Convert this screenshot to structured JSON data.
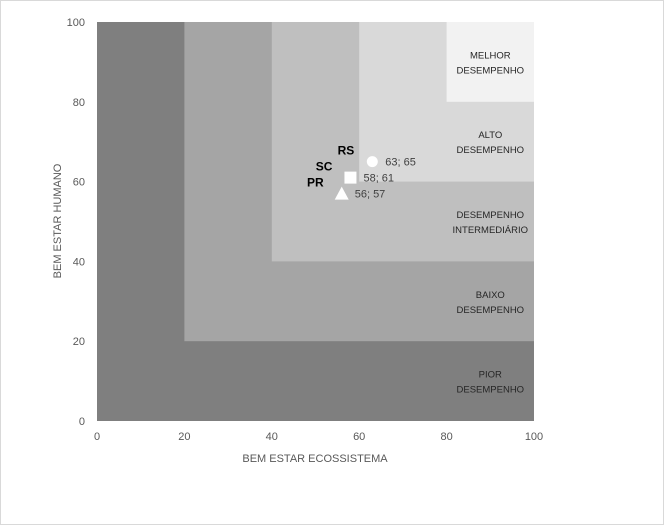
{
  "chart_data": {
    "type": "scatter",
    "title": "",
    "xlabel": "BEM ESTAR ECOSSISTEMA",
    "ylabel": "BEM ESTAR HUMANO",
    "xlim": [
      0,
      100
    ],
    "ylim": [
      0,
      100
    ],
    "xticks": [
      "0",
      "20",
      "40",
      "60",
      "80",
      "100"
    ],
    "yticks": [
      "0",
      "20",
      "40",
      "60",
      "80",
      "100"
    ],
    "grid": false,
    "legend": "none",
    "zones": [
      {
        "lines": [
          "PIOR",
          "DESEMPENHO"
        ],
        "min": 0,
        "color": "#7f7f7f"
      },
      {
        "lines": [
          "BAIXO",
          "DESEMPENHO"
        ],
        "min": 20,
        "color": "#a5a5a5"
      },
      {
        "lines": [
          "DESEMPENHO",
          "INTERMEDIÁRIO"
        ],
        "min": 40,
        "color": "#bfbfbf"
      },
      {
        "lines": [
          "ALTO",
          "DESEMPENHO"
        ],
        "min": 60,
        "color": "#d9d9d9"
      },
      {
        "lines": [
          "MELHOR",
          "DESEMPENHO"
        ],
        "min": 80,
        "color": "#f2f2f2"
      }
    ],
    "points": [
      {
        "name": "RS",
        "x": 63,
        "y": 65,
        "label": "63; 65",
        "marker": "circle"
      },
      {
        "name": "SC",
        "x": 58,
        "y": 61,
        "label": "58; 61",
        "marker": "square"
      },
      {
        "name": "PR",
        "x": 56,
        "y": 57,
        "label": "56; 57",
        "marker": "triangle"
      }
    ]
  }
}
